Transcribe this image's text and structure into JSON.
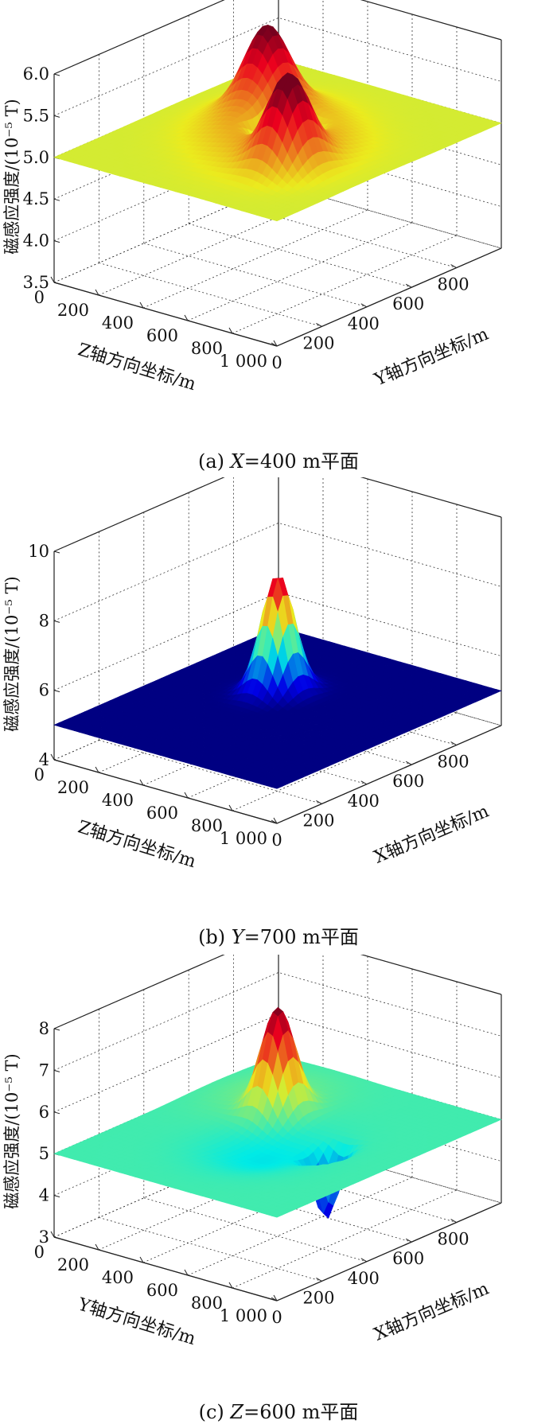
{
  "colors": {
    "axis": "#222222",
    "grid": "#333333"
  },
  "chart_data": [
    {
      "type": "surface",
      "caption_prefix": "(a) ",
      "caption_var": "X",
      "caption_suffix": "=400 m平面",
      "zlabel": "磁感应强度/(10⁻⁵ T)",
      "xlabel": "Z轴方向坐标/m",
      "ylabel": "Y轴方向坐标/m",
      "xticks": [
        "0",
        "200",
        "400",
        "600",
        "800",
        "1 000"
      ],
      "yticks": [
        "0",
        "200",
        "400",
        "600",
        "800"
      ],
      "zticks": [
        "3.5",
        "4.0",
        "4.5",
        "5.0",
        "5.5",
        "6.0"
      ],
      "xlim": [
        0,
        1000
      ],
      "ylim": [
        0,
        1000
      ],
      "zlim": [
        3.5,
        6.0
      ],
      "base": 5.0,
      "colormap": "jet",
      "color_range": [
        3.5,
        6.0
      ],
      "features": [
        {
          "x": 300,
          "y": 650,
          "amp": 0.85,
          "sigma": 70
        },
        {
          "x": 720,
          "y": 330,
          "amp": 0.95,
          "sigma": 70
        },
        {
          "x": 530,
          "y": 500,
          "amp": -1.3,
          "sigma": 60
        },
        {
          "x": 400,
          "y": 560,
          "amp": 0.3,
          "sigma": 150
        },
        {
          "x": 620,
          "y": 420,
          "amp": 0.3,
          "sigma": 150
        }
      ]
    },
    {
      "type": "surface",
      "caption_prefix": "(b) ",
      "caption_var": "Y",
      "caption_suffix": "=700 m平面",
      "zlabel": "磁感应强度/(10⁻⁵ T)",
      "xlabel": "Z轴方向坐标/m",
      "ylabel": "X轴方向坐标/m",
      "xticks": [
        "0",
        "200",
        "400",
        "600",
        "800",
        "1 000"
      ],
      "yticks": [
        "0",
        "200",
        "400",
        "600",
        "800"
      ],
      "zticks": [
        "4",
        "6",
        "8",
        "10"
      ],
      "xlim": [
        0,
        1000
      ],
      "ylim": [
        0,
        1000
      ],
      "zlim": [
        4,
        10
      ],
      "base": 5.0,
      "colormap": "jet",
      "color_range": [
        5.0,
        8.5
      ],
      "features": [
        {
          "x": 400,
          "y": 600,
          "amp": 3.4,
          "sigma": 55
        },
        {
          "x": 620,
          "y": 420,
          "amp": -0.35,
          "sigma": 50
        }
      ]
    },
    {
      "type": "surface",
      "caption_prefix": "(c) ",
      "caption_var": "Z",
      "caption_suffix": "=600 m平面",
      "zlabel": "磁感应强度/(10⁻⁵ T)",
      "xlabel": "Y轴方向坐标/m",
      "ylabel": "X轴方向坐标/m",
      "xticks": [
        "0",
        "200",
        "400",
        "600",
        "800",
        "1 000"
      ],
      "yticks": [
        "0",
        "200",
        "400",
        "600",
        "800"
      ],
      "zticks": [
        "3",
        "4",
        "5",
        "6",
        "7",
        "8"
      ],
      "xlim": [
        0,
        1000
      ],
      "ylim": [
        0,
        1000
      ],
      "zlim": [
        3,
        8
      ],
      "base": 5.0,
      "colormap": "jet",
      "color_range": [
        3.0,
        7.5
      ],
      "features": [
        {
          "x": 350,
          "y": 650,
          "amp": 2.4,
          "sigma": 55
        },
        {
          "x": 700,
          "y": 520,
          "amp": -1.6,
          "sigma": 40
        },
        {
          "x": 520,
          "y": 420,
          "amp": -0.35,
          "sigma": 140
        },
        {
          "x": 250,
          "y": 720,
          "amp": 0.25,
          "sigma": 140
        }
      ]
    }
  ]
}
